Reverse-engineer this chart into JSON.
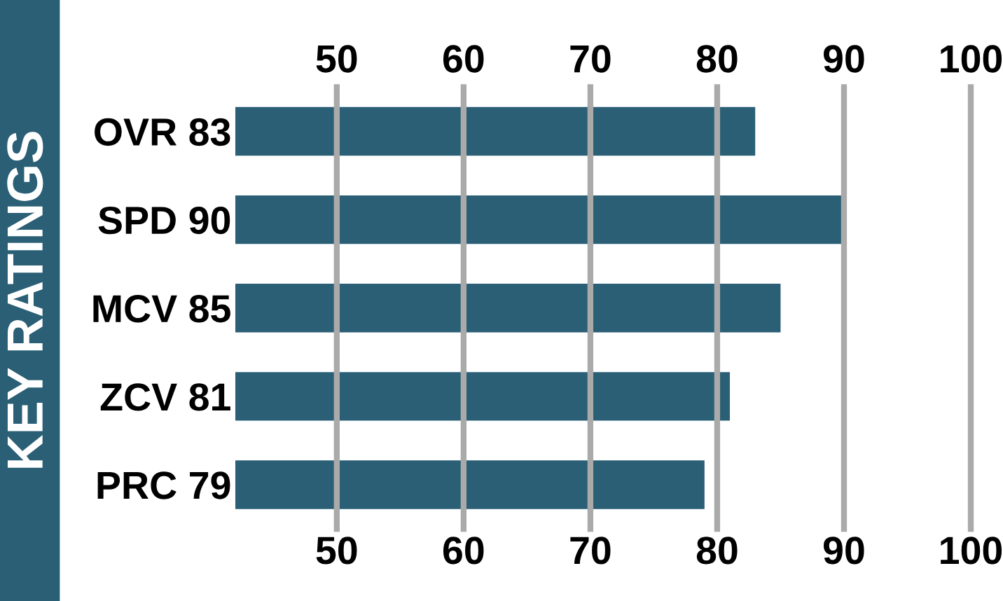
{
  "chart_data": {
    "type": "bar",
    "orientation": "horizontal",
    "title": "KEY RATINGS",
    "categories": [
      "OVR 83",
      "SPD 90",
      "MCV 85",
      "ZCV 81",
      "PRC 79"
    ],
    "values": [
      83,
      90,
      85,
      81,
      79
    ],
    "color": "#2a5f75",
    "xlim": [
      42,
      100
    ],
    "xticks": [
      50,
      60,
      70,
      80,
      90,
      100
    ],
    "x2lim": [
      42,
      100
    ],
    "x2ticks": [
      50,
      60,
      70,
      80,
      90,
      100
    ],
    "grid": "x"
  }
}
